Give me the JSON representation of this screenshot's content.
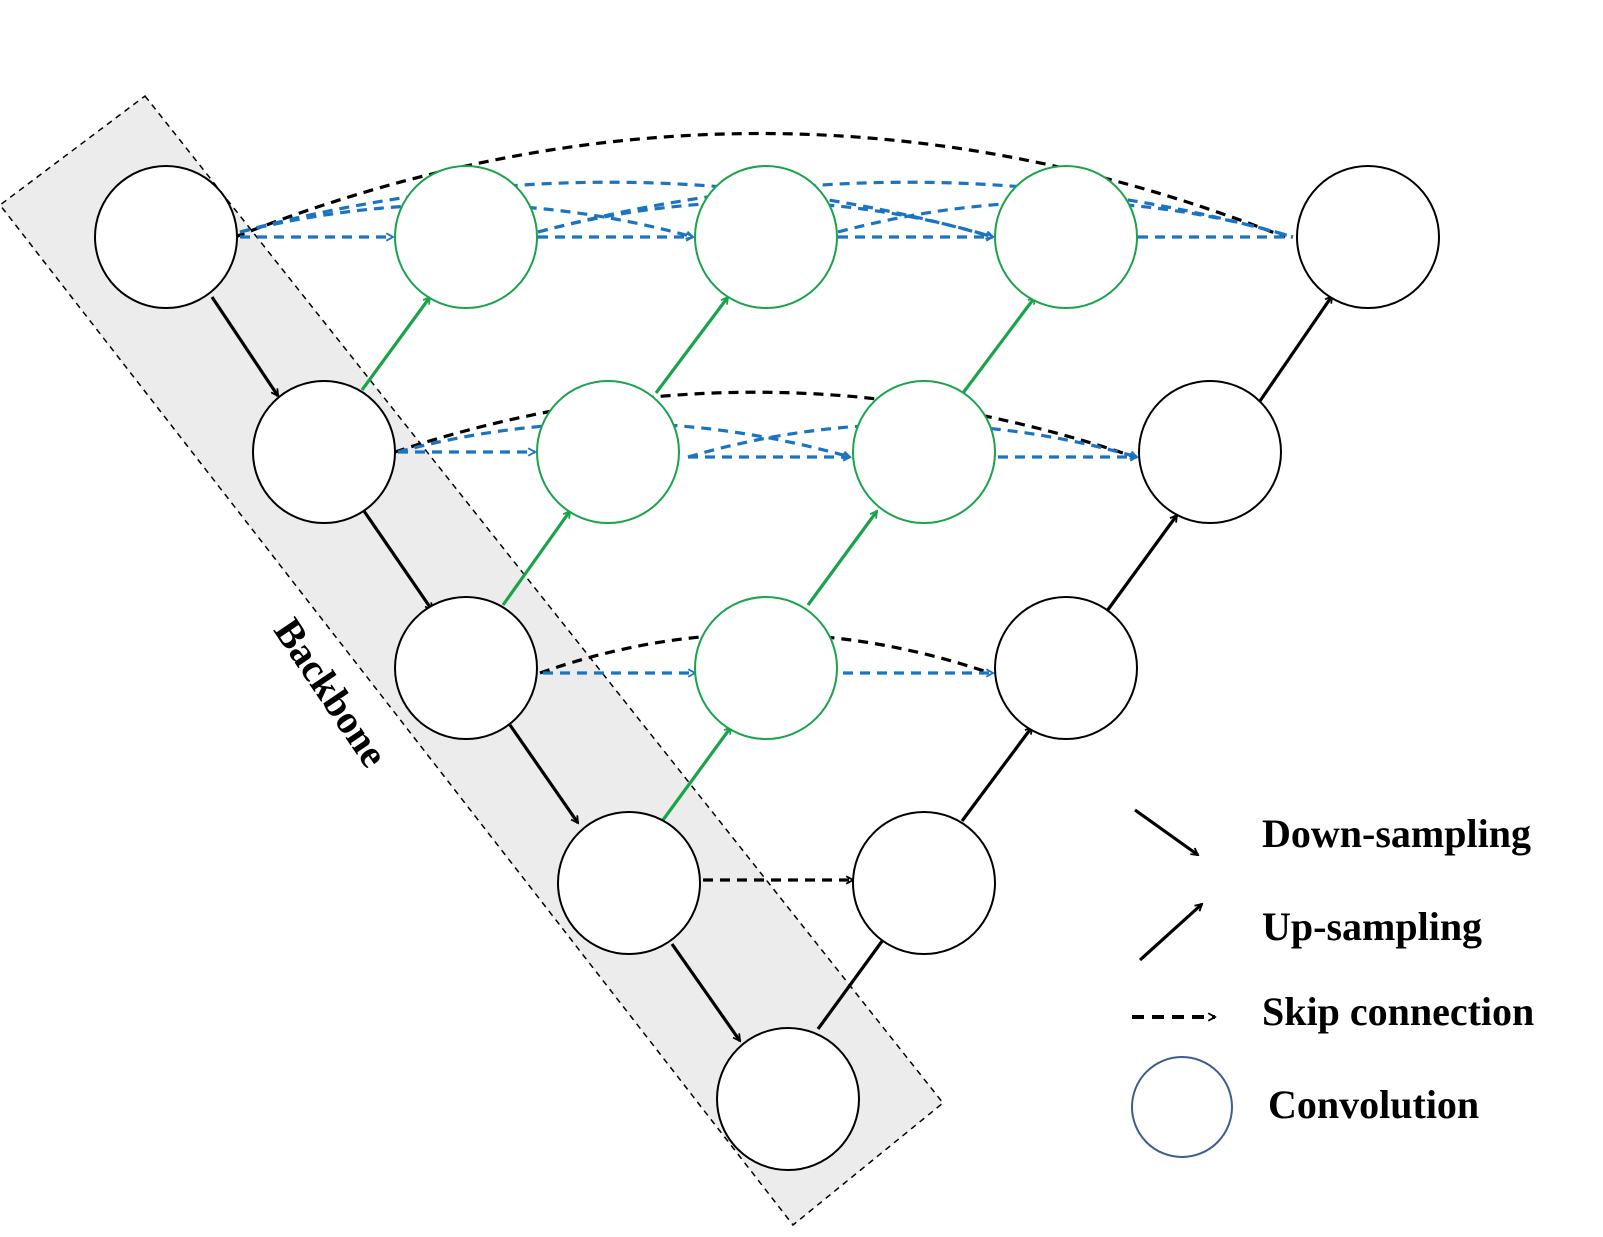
{
  "backbone_label": "Backbone",
  "legend": {
    "down_sampling": "Down-sampling",
    "up_sampling": "Up-sampling",
    "skip_connection": "Skip connection",
    "convolution": "Convolution"
  },
  "colors": {
    "backbone_fill": "#ececec",
    "node_stroke_backbone": "#000000",
    "node_stroke_nested": "#1aa34a",
    "node_stroke_decoder": "#000000",
    "arrow_down": "#000000",
    "arrow_up_nested": "#1aa34a",
    "arrow_up_decoder": "#000000",
    "skip_blue": "#1b74c2",
    "skip_black": "#000000",
    "legend_circle_stroke": "#3d5d8c"
  },
  "icons": {
    "down_sampling": "arrow-down-right-icon",
    "up_sampling": "arrow-up-right-icon",
    "skip_connection": "dashed-arrow-right-icon",
    "convolution": "circle-icon"
  }
}
